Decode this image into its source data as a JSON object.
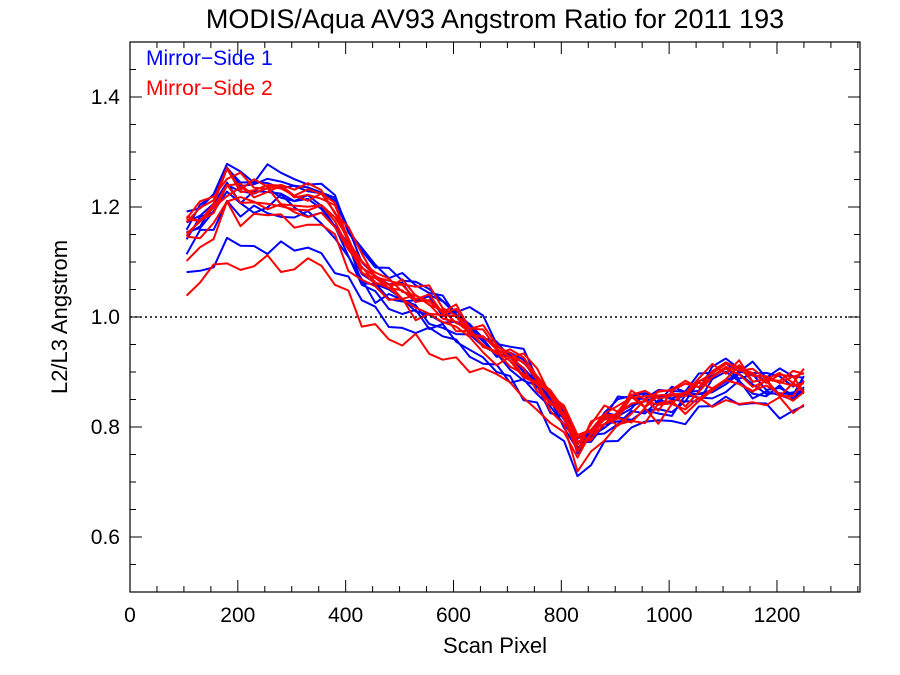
{
  "chart_data": {
    "type": "line",
    "title": "MODIS/Aqua AV93 Angstrom Ratio for 2011 193",
    "xlabel": "Scan Pixel",
    "ylabel": "L2/L3 Angstrom",
    "xlim": [
      0,
      1354
    ],
    "ylim": [
      0.5,
      1.5
    ],
    "x_ticks": [
      0,
      200,
      400,
      600,
      800,
      1000,
      1200
    ],
    "x_tick_labels": [
      "0",
      "200",
      "400",
      "600",
      "800",
      "1000",
      "1200"
    ],
    "y_ticks": [
      0.6,
      0.8,
      1.0,
      1.2,
      1.4
    ],
    "y_tick_labels": [
      "0.6",
      "0.8",
      "1.0",
      "1.2",
      "1.4"
    ],
    "reference_line": {
      "y": 1.0,
      "style": "dotted"
    },
    "legend": {
      "position": "top-left",
      "entries": [
        {
          "label": "Mirror−Side 1",
          "color": "#0000ff"
        },
        {
          "label": "Mirror−Side 2",
          "color": "#ff0000"
        }
      ]
    },
    "x": [
      105,
      130,
      155,
      180,
      205,
      230,
      255,
      280,
      305,
      330,
      355,
      380,
      405,
      430,
      455,
      480,
      505,
      530,
      555,
      580,
      605,
      630,
      655,
      680,
      705,
      730,
      755,
      780,
      805,
      830,
      855,
      880,
      905,
      930,
      955,
      980,
      1005,
      1030,
      1055,
      1080,
      1105,
      1130,
      1155,
      1180,
      1205,
      1230,
      1250
    ],
    "base_profile": [
      1.15,
      1.17,
      1.19,
      1.235,
      1.22,
      1.215,
      1.22,
      1.215,
      1.21,
      1.205,
      1.19,
      1.175,
      1.13,
      1.085,
      1.065,
      1.05,
      1.045,
      1.03,
      1.02,
      1.01,
      0.995,
      0.975,
      0.96,
      0.94,
      0.925,
      0.905,
      0.88,
      0.85,
      0.82,
      0.765,
      0.79,
      0.815,
      0.825,
      0.84,
      0.845,
      0.85,
      0.855,
      0.86,
      0.87,
      0.885,
      0.9,
      0.895,
      0.885,
      0.88,
      0.875,
      0.875,
      0.88
    ],
    "series": [
      {
        "mirror_side": 1,
        "color": "#0000ff",
        "offset": 0.0,
        "amplitude": 1.0,
        "seed": 1
      },
      {
        "mirror_side": 1,
        "color": "#0000ff",
        "offset": 0.02,
        "amplitude": 1.05,
        "seed": 2
      },
      {
        "mirror_side": 1,
        "color": "#0000ff",
        "offset": -0.02,
        "amplitude": 0.95,
        "seed": 3
      },
      {
        "mirror_side": 1,
        "color": "#0000ff",
        "offset": 0.01,
        "amplitude": 1.1,
        "seed": 4
      },
      {
        "mirror_side": 1,
        "color": "#0000ff",
        "offset": -0.01,
        "amplitude": 1.0,
        "seed": 5
      },
      {
        "mirror_side": 1,
        "color": "#0000ff",
        "offset": -0.05,
        "amplitude": 0.8,
        "seed": 6
      },
      {
        "mirror_side": 1,
        "color": "#0000ff",
        "offset": 0.03,
        "amplitude": 1.08,
        "seed": 7
      },
      {
        "mirror_side": 1,
        "color": "#0000ff",
        "offset": -0.03,
        "amplitude": 1.15,
        "seed": 8
      },
      {
        "mirror_side": 2,
        "color": "#ff0000",
        "offset": 0.01,
        "amplitude": 1.02,
        "seed": 11
      },
      {
        "mirror_side": 2,
        "color": "#ff0000",
        "offset": -0.01,
        "amplitude": 0.98,
        "seed": 12
      },
      {
        "mirror_side": 2,
        "color": "#ff0000",
        "offset": 0.02,
        "amplitude": 1.05,
        "seed": 13
      },
      {
        "mirror_side": 2,
        "color": "#ff0000",
        "offset": 0.0,
        "amplitude": 1.0,
        "seed": 14
      },
      {
        "mirror_side": 2,
        "color": "#ff0000",
        "offset": -0.07,
        "amplitude": 0.75,
        "seed": 15
      },
      {
        "mirror_side": 2,
        "color": "#ff0000",
        "offset": -0.02,
        "amplitude": 0.9,
        "seed": 16
      },
      {
        "mirror_side": 2,
        "color": "#ff0000",
        "offset": 0.015,
        "amplitude": 1.03,
        "seed": 17
      },
      {
        "mirror_side": 2,
        "color": "#ff0000",
        "offset": -0.005,
        "amplitude": 1.12,
        "seed": 18
      },
      {
        "mirror_side": 2,
        "color": "#ff0000",
        "offset": 0.005,
        "amplitude": 0.96,
        "seed": 19
      }
    ]
  }
}
